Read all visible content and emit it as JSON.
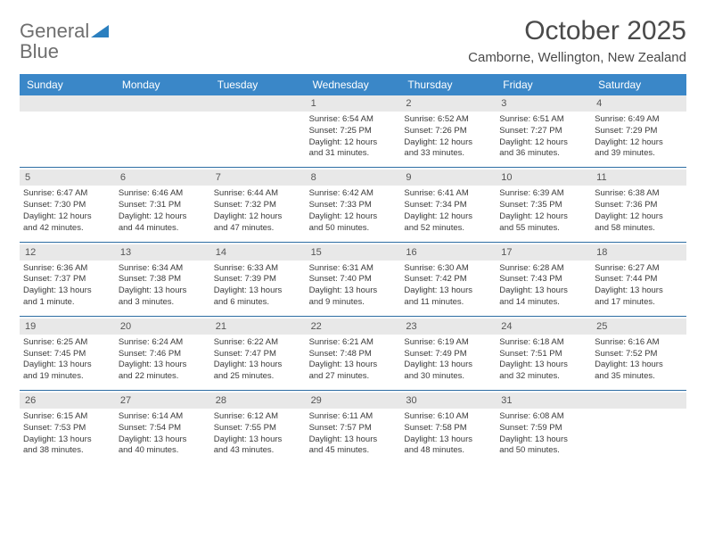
{
  "logo": {
    "text1": "General",
    "text2": "Blue"
  },
  "title": "October 2025",
  "location": "Camborne, Wellington, New Zealand",
  "day_header_bg": "#3a87c8",
  "day_header_fg": "#ffffff",
  "num_bar_bg": "#e8e8e8",
  "week_divider": "#2d6da3",
  "dayNames": [
    "Sunday",
    "Monday",
    "Tuesday",
    "Wednesday",
    "Thursday",
    "Friday",
    "Saturday"
  ],
  "weeks": [
    [
      {
        "empty": true
      },
      {
        "empty": true
      },
      {
        "empty": true
      },
      {
        "num": "1",
        "sunrise": "Sunrise: 6:54 AM",
        "sunset": "Sunset: 7:25 PM",
        "daylight1": "Daylight: 12 hours",
        "daylight2": "and 31 minutes."
      },
      {
        "num": "2",
        "sunrise": "Sunrise: 6:52 AM",
        "sunset": "Sunset: 7:26 PM",
        "daylight1": "Daylight: 12 hours",
        "daylight2": "and 33 minutes."
      },
      {
        "num": "3",
        "sunrise": "Sunrise: 6:51 AM",
        "sunset": "Sunset: 7:27 PM",
        "daylight1": "Daylight: 12 hours",
        "daylight2": "and 36 minutes."
      },
      {
        "num": "4",
        "sunrise": "Sunrise: 6:49 AM",
        "sunset": "Sunset: 7:29 PM",
        "daylight1": "Daylight: 12 hours",
        "daylight2": "and 39 minutes."
      }
    ],
    [
      {
        "num": "5",
        "sunrise": "Sunrise: 6:47 AM",
        "sunset": "Sunset: 7:30 PM",
        "daylight1": "Daylight: 12 hours",
        "daylight2": "and 42 minutes."
      },
      {
        "num": "6",
        "sunrise": "Sunrise: 6:46 AM",
        "sunset": "Sunset: 7:31 PM",
        "daylight1": "Daylight: 12 hours",
        "daylight2": "and 44 minutes."
      },
      {
        "num": "7",
        "sunrise": "Sunrise: 6:44 AM",
        "sunset": "Sunset: 7:32 PM",
        "daylight1": "Daylight: 12 hours",
        "daylight2": "and 47 minutes."
      },
      {
        "num": "8",
        "sunrise": "Sunrise: 6:42 AM",
        "sunset": "Sunset: 7:33 PM",
        "daylight1": "Daylight: 12 hours",
        "daylight2": "and 50 minutes."
      },
      {
        "num": "9",
        "sunrise": "Sunrise: 6:41 AM",
        "sunset": "Sunset: 7:34 PM",
        "daylight1": "Daylight: 12 hours",
        "daylight2": "and 52 minutes."
      },
      {
        "num": "10",
        "sunrise": "Sunrise: 6:39 AM",
        "sunset": "Sunset: 7:35 PM",
        "daylight1": "Daylight: 12 hours",
        "daylight2": "and 55 minutes."
      },
      {
        "num": "11",
        "sunrise": "Sunrise: 6:38 AM",
        "sunset": "Sunset: 7:36 PM",
        "daylight1": "Daylight: 12 hours",
        "daylight2": "and 58 minutes."
      }
    ],
    [
      {
        "num": "12",
        "sunrise": "Sunrise: 6:36 AM",
        "sunset": "Sunset: 7:37 PM",
        "daylight1": "Daylight: 13 hours",
        "daylight2": "and 1 minute."
      },
      {
        "num": "13",
        "sunrise": "Sunrise: 6:34 AM",
        "sunset": "Sunset: 7:38 PM",
        "daylight1": "Daylight: 13 hours",
        "daylight2": "and 3 minutes."
      },
      {
        "num": "14",
        "sunrise": "Sunrise: 6:33 AM",
        "sunset": "Sunset: 7:39 PM",
        "daylight1": "Daylight: 13 hours",
        "daylight2": "and 6 minutes."
      },
      {
        "num": "15",
        "sunrise": "Sunrise: 6:31 AM",
        "sunset": "Sunset: 7:40 PM",
        "daylight1": "Daylight: 13 hours",
        "daylight2": "and 9 minutes."
      },
      {
        "num": "16",
        "sunrise": "Sunrise: 6:30 AM",
        "sunset": "Sunset: 7:42 PM",
        "daylight1": "Daylight: 13 hours",
        "daylight2": "and 11 minutes."
      },
      {
        "num": "17",
        "sunrise": "Sunrise: 6:28 AM",
        "sunset": "Sunset: 7:43 PM",
        "daylight1": "Daylight: 13 hours",
        "daylight2": "and 14 minutes."
      },
      {
        "num": "18",
        "sunrise": "Sunrise: 6:27 AM",
        "sunset": "Sunset: 7:44 PM",
        "daylight1": "Daylight: 13 hours",
        "daylight2": "and 17 minutes."
      }
    ],
    [
      {
        "num": "19",
        "sunrise": "Sunrise: 6:25 AM",
        "sunset": "Sunset: 7:45 PM",
        "daylight1": "Daylight: 13 hours",
        "daylight2": "and 19 minutes."
      },
      {
        "num": "20",
        "sunrise": "Sunrise: 6:24 AM",
        "sunset": "Sunset: 7:46 PM",
        "daylight1": "Daylight: 13 hours",
        "daylight2": "and 22 minutes."
      },
      {
        "num": "21",
        "sunrise": "Sunrise: 6:22 AM",
        "sunset": "Sunset: 7:47 PM",
        "daylight1": "Daylight: 13 hours",
        "daylight2": "and 25 minutes."
      },
      {
        "num": "22",
        "sunrise": "Sunrise: 6:21 AM",
        "sunset": "Sunset: 7:48 PM",
        "daylight1": "Daylight: 13 hours",
        "daylight2": "and 27 minutes."
      },
      {
        "num": "23",
        "sunrise": "Sunrise: 6:19 AM",
        "sunset": "Sunset: 7:49 PM",
        "daylight1": "Daylight: 13 hours",
        "daylight2": "and 30 minutes."
      },
      {
        "num": "24",
        "sunrise": "Sunrise: 6:18 AM",
        "sunset": "Sunset: 7:51 PM",
        "daylight1": "Daylight: 13 hours",
        "daylight2": "and 32 minutes."
      },
      {
        "num": "25",
        "sunrise": "Sunrise: 6:16 AM",
        "sunset": "Sunset: 7:52 PM",
        "daylight1": "Daylight: 13 hours",
        "daylight2": "and 35 minutes."
      }
    ],
    [
      {
        "num": "26",
        "sunrise": "Sunrise: 6:15 AM",
        "sunset": "Sunset: 7:53 PM",
        "daylight1": "Daylight: 13 hours",
        "daylight2": "and 38 minutes."
      },
      {
        "num": "27",
        "sunrise": "Sunrise: 6:14 AM",
        "sunset": "Sunset: 7:54 PM",
        "daylight1": "Daylight: 13 hours",
        "daylight2": "and 40 minutes."
      },
      {
        "num": "28",
        "sunrise": "Sunrise: 6:12 AM",
        "sunset": "Sunset: 7:55 PM",
        "daylight1": "Daylight: 13 hours",
        "daylight2": "and 43 minutes."
      },
      {
        "num": "29",
        "sunrise": "Sunrise: 6:11 AM",
        "sunset": "Sunset: 7:57 PM",
        "daylight1": "Daylight: 13 hours",
        "daylight2": "and 45 minutes."
      },
      {
        "num": "30",
        "sunrise": "Sunrise: 6:10 AM",
        "sunset": "Sunset: 7:58 PM",
        "daylight1": "Daylight: 13 hours",
        "daylight2": "and 48 minutes."
      },
      {
        "num": "31",
        "sunrise": "Sunrise: 6:08 AM",
        "sunset": "Sunset: 7:59 PM",
        "daylight1": "Daylight: 13 hours",
        "daylight2": "and 50 minutes."
      },
      {
        "empty": true
      }
    ]
  ]
}
